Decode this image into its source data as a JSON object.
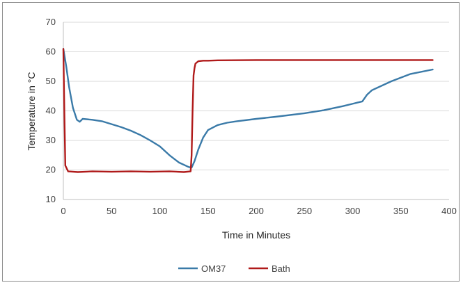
{
  "chart_data": {
    "type": "line",
    "xlabel": "Time in Minutes",
    "ylabel": "Temperature in °C",
    "xlim": [
      0,
      400
    ],
    "ylim": [
      10,
      70
    ],
    "x_ticks": [
      0,
      50,
      100,
      150,
      200,
      250,
      300,
      350,
      400
    ],
    "y_ticks": [
      10,
      20,
      30,
      40,
      50,
      60,
      70
    ],
    "grid": "horizontal",
    "legend_position": "bottom",
    "series": [
      {
        "name": "OM37",
        "color": "#3a7aa8",
        "x": [
          0,
          3,
          6,
          10,
          14,
          17,
          20,
          30,
          40,
          50,
          60,
          70,
          80,
          90,
          100,
          110,
          120,
          130,
          133,
          136,
          140,
          145,
          150,
          160,
          170,
          180,
          200,
          220,
          250,
          270,
          290,
          305,
          310,
          315,
          320,
          340,
          360,
          383
        ],
        "y": [
          61,
          55,
          48,
          41,
          37,
          36.3,
          37.3,
          37,
          36.5,
          35.5,
          34.5,
          33.3,
          31.8,
          30,
          28,
          25,
          22.5,
          21,
          20.8,
          23,
          27,
          31,
          33.5,
          35.2,
          36,
          36.5,
          37.3,
          38,
          39.2,
          40.2,
          41.6,
          42.8,
          43.2,
          45.5,
          47,
          50,
          52.5,
          54
        ]
      },
      {
        "name": "Bath",
        "color": "#b01a1a",
        "x": [
          0,
          1,
          2,
          5,
          15,
          30,
          50,
          70,
          90,
          110,
          125,
          132,
          133,
          134,
          135,
          136,
          137,
          140,
          145,
          150,
          160,
          200,
          300,
          383
        ],
        "y": [
          61,
          40,
          21.5,
          19.5,
          19.3,
          19.5,
          19.4,
          19.5,
          19.4,
          19.5,
          19.3,
          19.5,
          25,
          40,
          52,
          54.5,
          56,
          56.8,
          57,
          57,
          57.1,
          57.2,
          57.2,
          57.2
        ]
      }
    ]
  }
}
